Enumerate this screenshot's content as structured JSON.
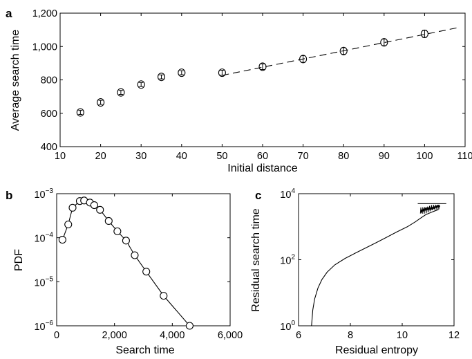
{
  "chart_data": [
    {
      "panel": "a",
      "type": "scatter",
      "xlabel": "Initial distance",
      "ylabel": "Average search time",
      "xlim": [
        10,
        110
      ],
      "ylim": [
        400,
        1200
      ],
      "xticks": [
        "10",
        "20",
        "30",
        "40",
        "50",
        "60",
        "70",
        "80",
        "90",
        "100",
        "110"
      ],
      "yticks": [
        "400",
        "600",
        "800",
        "1,000",
        "1,200"
      ],
      "series": [
        {
          "marker": "open-circle",
          "error_bars": true,
          "x": [
            15,
            20,
            25,
            30,
            35,
            40,
            50,
            60,
            70,
            80,
            90,
            100
          ],
          "y": [
            605,
            665,
            725,
            772,
            818,
            843,
            843,
            879,
            925,
            973,
            1025,
            1076
          ],
          "yerr": [
            12,
            12,
            12,
            12,
            12,
            12,
            15,
            17,
            20,
            20,
            20,
            22
          ]
        }
      ],
      "fit_line": {
        "style": "dashed",
        "x": [
          50,
          108
        ],
        "y": [
          827,
          1112
        ]
      }
    },
    {
      "panel": "b",
      "type": "line",
      "xlabel": "Search time",
      "ylabel": "PDF",
      "xlim": [
        0,
        6000
      ],
      "ylim": [
        1e-06,
        0.001
      ],
      "yscale": "log",
      "xticks": [
        "0",
        "2,000",
        "4,000",
        "6,000"
      ],
      "yticks": [
        {
          "base": "10",
          "exp": "−6",
          "value": 1e-06
        },
        {
          "base": "10",
          "exp": "−5",
          "value": 1e-05
        },
        {
          "base": "10",
          "exp": "−4",
          "value": 0.0001
        },
        {
          "base": "10",
          "exp": "−3",
          "value": 0.001
        }
      ],
      "series": [
        {
          "marker": "open-circle",
          "x": [
            200,
            400,
            550,
            800,
            950,
            1150,
            1300,
            1500,
            1800,
            2100,
            2400,
            2700,
            3100,
            3700,
            4600
          ],
          "y": [
            9e-05,
            0.0002,
            0.00048,
            0.00068,
            0.0007,
            0.00063,
            0.00055,
            0.00043,
            0.00024,
            0.00014,
            8.6e-05,
            4e-05,
            1.7e-05,
            4.8e-06,
            1e-06
          ]
        }
      ]
    },
    {
      "panel": "c",
      "type": "line",
      "xlabel": "Residual entropy",
      "ylabel": "Residual search time",
      "xlim": [
        6,
        12
      ],
      "ylim": [
        1,
        10000
      ],
      "yscale": "log",
      "xticks": [
        "6",
        "8",
        "10",
        "12"
      ],
      "yticks": [
        {
          "base": "10",
          "exp": "0",
          "value": 1
        },
        {
          "base": "10",
          "exp": "2",
          "value": 100
        },
        {
          "base": "10",
          "exp": "4",
          "value": 10000
        }
      ],
      "series": [
        {
          "style": "solid",
          "x": [
            6.5,
            6.55,
            6.62,
            6.75,
            6.9,
            7.1,
            7.4,
            7.8,
            8.2,
            8.6,
            9.0,
            9.4,
            9.8,
            10.2,
            10.5,
            10.7,
            10.9,
            11.1,
            11.3,
            11.4
          ],
          "y": [
            1,
            3,
            6.5,
            14,
            25,
            42,
            70,
            110,
            160,
            230,
            330,
            480,
            700,
            1000,
            1400,
            1800,
            2300,
            2700,
            3100,
            3300
          ]
        }
      ],
      "plateau_line": {
        "x": [
          10.6,
          11.7
        ],
        "y": 5000
      }
    }
  ]
}
